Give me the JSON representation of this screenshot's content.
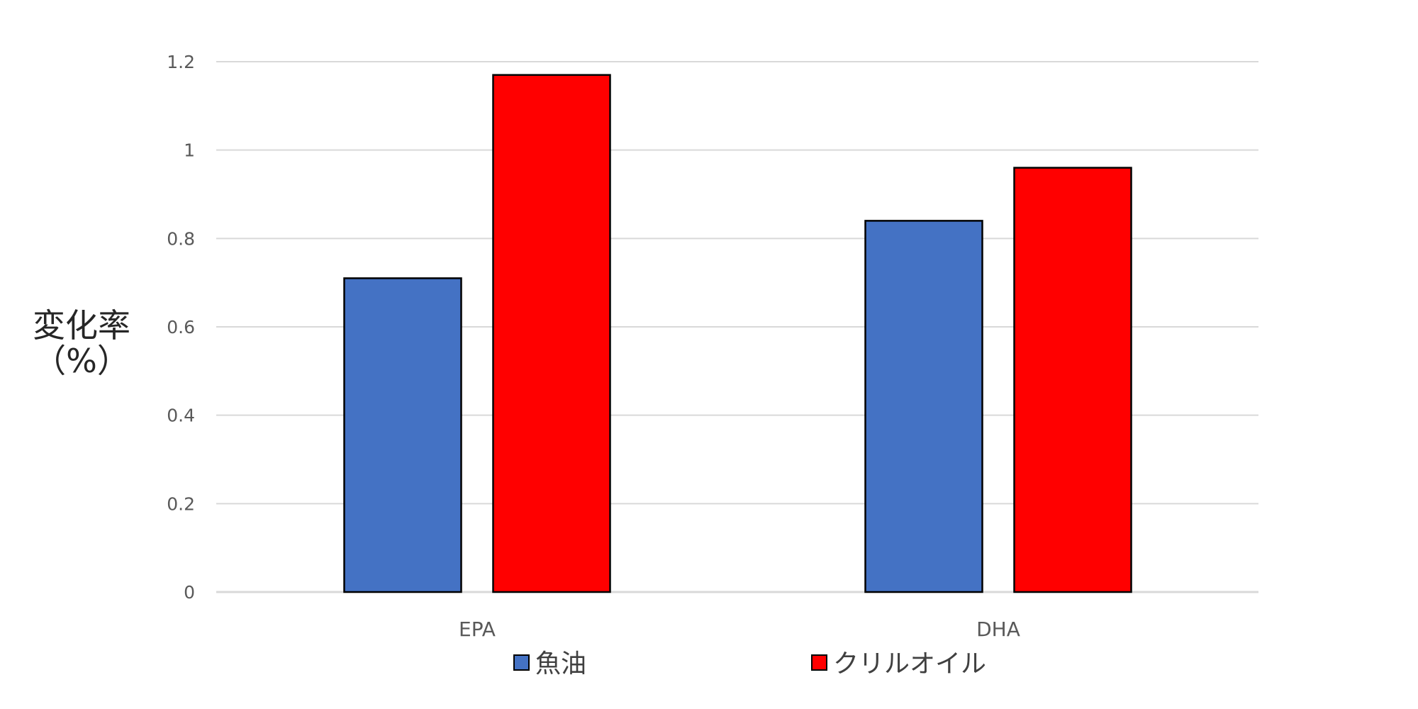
{
  "chart_data": {
    "type": "bar",
    "categories": [
      "EPA",
      "DHA"
    ],
    "series": [
      {
        "name": "魚油",
        "color": "#4472C4",
        "values": [
          0.71,
          0.84
        ]
      },
      {
        "name": "クリルオイル",
        "color": "#FF0000",
        "values": [
          1.17,
          0.96
        ]
      }
    ],
    "ylabel_lines": [
      "変化率",
      "（%）"
    ],
    "ylim": [
      0,
      1.2
    ],
    "yticks": [
      0,
      0.2,
      0.4,
      0.6,
      0.8,
      1,
      1.2
    ],
    "ytick_labels": [
      "0",
      "0.2",
      "0.4",
      "0.6",
      "0.8",
      "1",
      "1.2"
    ],
    "grid": true,
    "legend_position": "bottom"
  }
}
